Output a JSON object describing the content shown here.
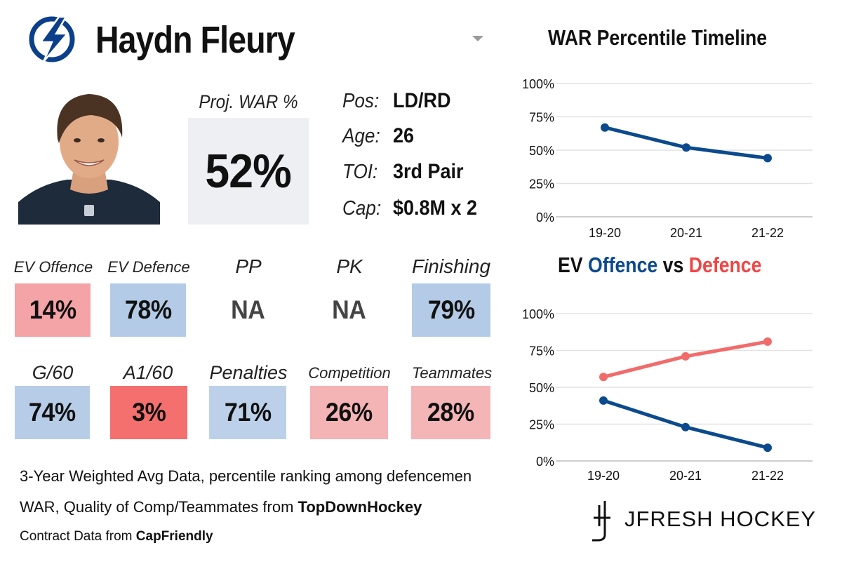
{
  "player": {
    "name": "Haydn Fleury",
    "proj_war_label": "Proj. WAR %",
    "proj_war_value": "52%",
    "info": [
      {
        "label": "Pos:",
        "value": "LD/RD"
      },
      {
        "label": "Age:",
        "value": "26"
      },
      {
        "label": "TOI:",
        "value": "3rd Pair"
      },
      {
        "label": "Cap:",
        "value": "$0.8M x 2"
      }
    ]
  },
  "stats_row1": [
    {
      "label": "EV Offence",
      "value": "14%",
      "color": "#f4a3a6"
    },
    {
      "label": "EV Defence",
      "value": "78%",
      "color": "#b3cbe6"
    },
    {
      "label": "PP",
      "value": "NA",
      "color": "#ffffff"
    },
    {
      "label": "PK",
      "value": "NA",
      "color": "#ffffff"
    },
    {
      "label": "Finishing",
      "value": "79%",
      "color": "#b3cbe6"
    }
  ],
  "stats_row2": [
    {
      "label": "G/60",
      "value": "74%",
      "color": "#b7cde7"
    },
    {
      "label": "A1/60",
      "value": "3%",
      "color": "#f3706e"
    },
    {
      "label": "Penalties",
      "value": "71%",
      "color": "#bcd1e9"
    },
    {
      "label": "Competition",
      "value": "26%",
      "color": "#f4b3b4"
    },
    {
      "label": "Teammates",
      "value": "28%",
      "color": "#f4b5b6"
    }
  ],
  "footer": {
    "line1": "3-Year Weighted Avg Data, percentile ranking among defencemen",
    "line2_prefix": "WAR, Quality of Comp/Teammates from ",
    "line2_source": "TopDownHockey",
    "line3_prefix": "Contract Data from ",
    "line3_source": "CapFriendly"
  },
  "brand": "JFRESH HOCKEY",
  "colors": {
    "offence": "#0b4a8c",
    "defence": "#f26b6b",
    "grid": "#e3e3e3"
  },
  "chart_data": [
    {
      "type": "line",
      "title": "WAR Percentile Timeline",
      "categories": [
        "19-20",
        "20-21",
        "21-22"
      ],
      "series": [
        {
          "values": [
            67,
            52,
            44
          ],
          "color": "#0b4a8c"
        }
      ],
      "yticks": [
        "0%",
        "25%",
        "50%",
        "75%",
        "100%"
      ],
      "ylim": [
        0,
        100
      ],
      "grid": true
    },
    {
      "type": "line",
      "title_parts": [
        "EV",
        "Offence",
        "vs",
        "Defence"
      ],
      "categories": [
        "19-20",
        "20-21",
        "21-22"
      ],
      "series": [
        {
          "name": "Offence",
          "values": [
            41,
            23,
            9
          ],
          "color": "#0b4a8c"
        },
        {
          "name": "Defence",
          "values": [
            57,
            71,
            81
          ],
          "color": "#f26b6b"
        }
      ],
      "yticks": [
        "0%",
        "25%",
        "50%",
        "75%",
        "100%"
      ],
      "ylim": [
        0,
        100
      ],
      "grid": true
    }
  ]
}
